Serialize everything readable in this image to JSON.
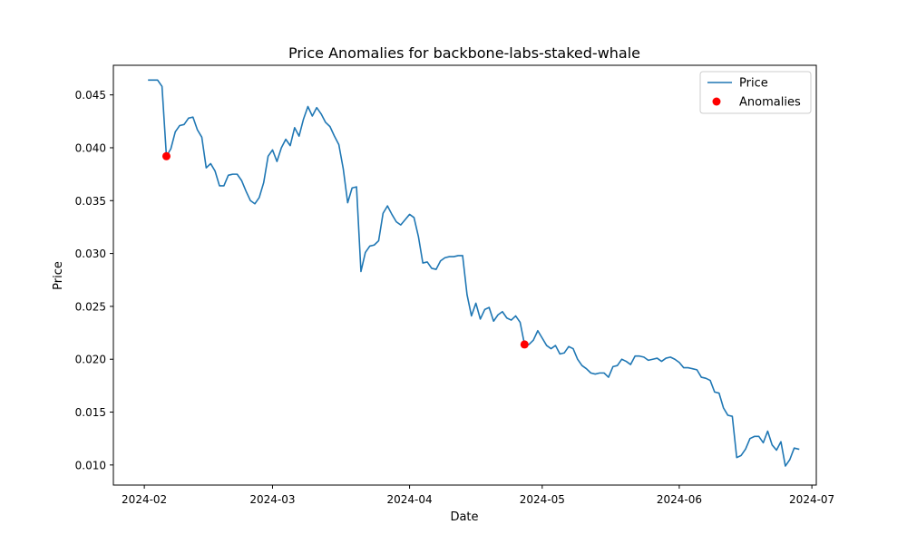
{
  "chart_data": {
    "type": "line",
    "title": "Price Anomalies for backbone-labs-staked-whale",
    "xlabel": "Date",
    "ylabel": "Price",
    "x_ticks": [
      "2024-02-01",
      "2024-03-01",
      "2024-04-01",
      "2024-05-01",
      "2024-06-01",
      "2024-07-01"
    ],
    "x_tick_labels": [
      "2024-02",
      "2024-03",
      "2024-04",
      "2024-05",
      "2024-06",
      "2024-07"
    ],
    "y_ticks": [
      0.01,
      0.015,
      0.02,
      0.025,
      0.03,
      0.035,
      0.04,
      0.045
    ],
    "y_tick_labels": [
      "0.010",
      "0.015",
      "0.020",
      "0.025",
      "0.030",
      "0.035",
      "0.040",
      "0.045"
    ],
    "xlim": [
      "2024-01-25",
      "2024-07-02"
    ],
    "ylim": [
      0.0081,
      0.0478
    ],
    "legend_position": "top-right",
    "grid": false,
    "series": [
      {
        "name": "Price",
        "kind": "line",
        "color": "#1f77b4",
        "points": [
          [
            "2024-02-02",
            0.0464
          ],
          [
            "2024-02-03",
            0.0464
          ],
          [
            "2024-02-04",
            0.0464
          ],
          [
            "2024-02-05",
            0.0458
          ],
          [
            "2024-02-06",
            0.0392
          ],
          [
            "2024-02-07",
            0.0399
          ],
          [
            "2024-02-08",
            0.0415
          ],
          [
            "2024-02-09",
            0.0421
          ],
          [
            "2024-02-10",
            0.0422
          ],
          [
            "2024-02-11",
            0.0428
          ],
          [
            "2024-02-12",
            0.0429
          ],
          [
            "2024-02-13",
            0.0417
          ],
          [
            "2024-02-14",
            0.041
          ],
          [
            "2024-02-15",
            0.0381
          ],
          [
            "2024-02-16",
            0.0385
          ],
          [
            "2024-02-17",
            0.0378
          ],
          [
            "2024-02-18",
            0.0364
          ],
          [
            "2024-02-19",
            0.0364
          ],
          [
            "2024-02-20",
            0.0374
          ],
          [
            "2024-02-21",
            0.0375
          ],
          [
            "2024-02-22",
            0.0375
          ],
          [
            "2024-02-23",
            0.0369
          ],
          [
            "2024-02-24",
            0.0359
          ],
          [
            "2024-02-25",
            0.035
          ],
          [
            "2024-02-26",
            0.0347
          ],
          [
            "2024-02-27",
            0.0353
          ],
          [
            "2024-02-28",
            0.0367
          ],
          [
            "2024-02-29",
            0.0392
          ],
          [
            "2024-03-01",
            0.0398
          ],
          [
            "2024-03-02",
            0.0387
          ],
          [
            "2024-03-03",
            0.04
          ],
          [
            "2024-03-04",
            0.0408
          ],
          [
            "2024-03-05",
            0.0402
          ],
          [
            "2024-03-06",
            0.0419
          ],
          [
            "2024-03-07",
            0.0411
          ],
          [
            "2024-03-08",
            0.0427
          ],
          [
            "2024-03-09",
            0.0439
          ],
          [
            "2024-03-10",
            0.043
          ],
          [
            "2024-03-11",
            0.0438
          ],
          [
            "2024-03-12",
            0.0432
          ],
          [
            "2024-03-13",
            0.0424
          ],
          [
            "2024-03-14",
            0.042
          ],
          [
            "2024-03-15",
            0.0411
          ],
          [
            "2024-03-16",
            0.0403
          ],
          [
            "2024-03-17",
            0.038
          ],
          [
            "2024-03-18",
            0.0348
          ],
          [
            "2024-03-19",
            0.0362
          ],
          [
            "2024-03-20",
            0.0363
          ],
          [
            "2024-03-21",
            0.0283
          ],
          [
            "2024-03-22",
            0.0301
          ],
          [
            "2024-03-23",
            0.0307
          ],
          [
            "2024-03-24",
            0.0308
          ],
          [
            "2024-03-25",
            0.0312
          ],
          [
            "2024-03-26",
            0.0338
          ],
          [
            "2024-03-27",
            0.0345
          ],
          [
            "2024-03-28",
            0.0337
          ],
          [
            "2024-03-29",
            0.033
          ],
          [
            "2024-03-30",
            0.0327
          ],
          [
            "2024-03-31",
            0.0332
          ],
          [
            "2024-04-01",
            0.0337
          ],
          [
            "2024-04-02",
            0.0334
          ],
          [
            "2024-04-03",
            0.0316
          ],
          [
            "2024-04-04",
            0.0291
          ],
          [
            "2024-04-05",
            0.0292
          ],
          [
            "2024-04-06",
            0.0286
          ],
          [
            "2024-04-07",
            0.0285
          ],
          [
            "2024-04-08",
            0.0293
          ],
          [
            "2024-04-09",
            0.0296
          ],
          [
            "2024-04-10",
            0.0297
          ],
          [
            "2024-04-11",
            0.0297
          ],
          [
            "2024-04-12",
            0.0298
          ],
          [
            "2024-04-13",
            0.0298
          ],
          [
            "2024-04-14",
            0.0261
          ],
          [
            "2024-04-15",
            0.0241
          ],
          [
            "2024-04-16",
            0.0253
          ],
          [
            "2024-04-17",
            0.0238
          ],
          [
            "2024-04-18",
            0.0247
          ],
          [
            "2024-04-19",
            0.0249
          ],
          [
            "2024-04-20",
            0.0236
          ],
          [
            "2024-04-21",
            0.0242
          ],
          [
            "2024-04-22",
            0.0245
          ],
          [
            "2024-04-23",
            0.0239
          ],
          [
            "2024-04-24",
            0.0237
          ],
          [
            "2024-04-25",
            0.0241
          ],
          [
            "2024-04-26",
            0.0235
          ],
          [
            "2024-04-27",
            0.0214
          ],
          [
            "2024-04-28",
            0.0214
          ],
          [
            "2024-04-29",
            0.0218
          ],
          [
            "2024-04-30",
            0.0227
          ],
          [
            "2024-05-01",
            0.022
          ],
          [
            "2024-05-02",
            0.0213
          ],
          [
            "2024-05-03",
            0.021
          ],
          [
            "2024-05-04",
            0.0213
          ],
          [
            "2024-05-05",
            0.0205
          ],
          [
            "2024-05-06",
            0.0206
          ],
          [
            "2024-05-07",
            0.0212
          ],
          [
            "2024-05-08",
            0.021
          ],
          [
            "2024-05-09",
            0.02
          ],
          [
            "2024-05-10",
            0.0194
          ],
          [
            "2024-05-11",
            0.0191
          ],
          [
            "2024-05-12",
            0.0187
          ],
          [
            "2024-05-13",
            0.0186
          ],
          [
            "2024-05-14",
            0.0187
          ],
          [
            "2024-05-15",
            0.0187
          ],
          [
            "2024-05-16",
            0.0183
          ],
          [
            "2024-05-17",
            0.0193
          ],
          [
            "2024-05-18",
            0.0194
          ],
          [
            "2024-05-19",
            0.02
          ],
          [
            "2024-05-20",
            0.0198
          ],
          [
            "2024-05-21",
            0.0195
          ],
          [
            "2024-05-22",
            0.0203
          ],
          [
            "2024-05-23",
            0.0203
          ],
          [
            "2024-05-24",
            0.0202
          ],
          [
            "2024-05-25",
            0.0199
          ],
          [
            "2024-05-26",
            0.02
          ],
          [
            "2024-05-27",
            0.0201
          ],
          [
            "2024-05-28",
            0.0198
          ],
          [
            "2024-05-29",
            0.0201
          ],
          [
            "2024-05-30",
            0.0202
          ],
          [
            "2024-05-31",
            0.02
          ],
          [
            "2024-06-01",
            0.0197
          ],
          [
            "2024-06-02",
            0.0192
          ],
          [
            "2024-06-03",
            0.0192
          ],
          [
            "2024-06-04",
            0.0191
          ],
          [
            "2024-06-05",
            0.019
          ],
          [
            "2024-06-06",
            0.0183
          ],
          [
            "2024-06-07",
            0.0182
          ],
          [
            "2024-06-08",
            0.018
          ],
          [
            "2024-06-09",
            0.0169
          ],
          [
            "2024-06-10",
            0.0168
          ],
          [
            "2024-06-11",
            0.0154
          ],
          [
            "2024-06-12",
            0.0147
          ],
          [
            "2024-06-13",
            0.0146
          ],
          [
            "2024-06-14",
            0.0107
          ],
          [
            "2024-06-15",
            0.0109
          ],
          [
            "2024-06-16",
            0.0115
          ],
          [
            "2024-06-17",
            0.0125
          ],
          [
            "2024-06-18",
            0.0127
          ],
          [
            "2024-06-19",
            0.0127
          ],
          [
            "2024-06-20",
            0.0121
          ],
          [
            "2024-06-21",
            0.0132
          ],
          [
            "2024-06-22",
            0.0119
          ],
          [
            "2024-06-23",
            0.0114
          ],
          [
            "2024-06-24",
            0.0122
          ],
          [
            "2024-06-25",
            0.0099
          ],
          [
            "2024-06-26",
            0.0105
          ],
          [
            "2024-06-27",
            0.0116
          ],
          [
            "2024-06-28",
            0.0115
          ]
        ]
      },
      {
        "name": "Anomalies",
        "kind": "scatter",
        "color": "#ff0000",
        "points": [
          [
            "2024-02-06",
            0.0392
          ],
          [
            "2024-04-27",
            0.0214
          ]
        ]
      }
    ]
  }
}
